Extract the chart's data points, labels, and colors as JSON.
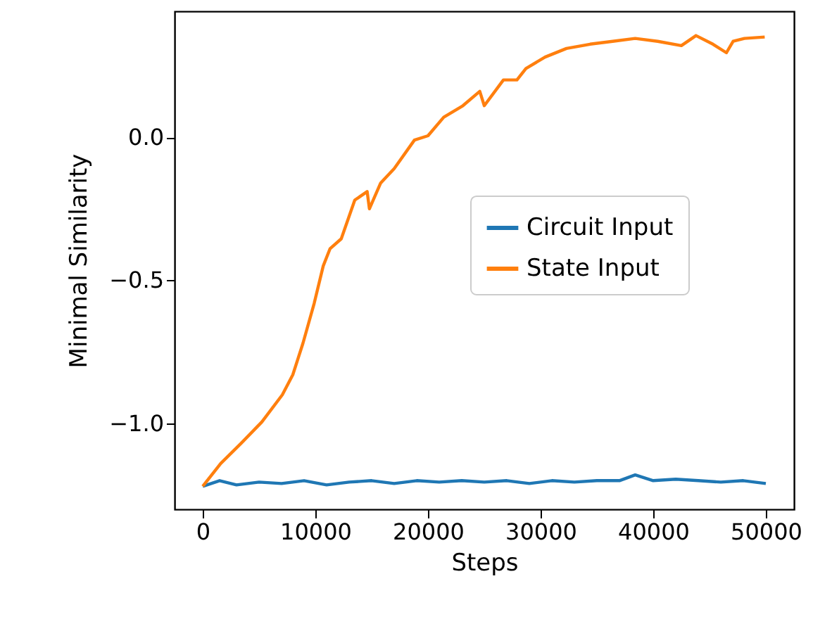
{
  "chart_data": {
    "type": "line",
    "xlabel": "Steps",
    "ylabel": "Minimal Similarity",
    "xlim": [
      -2500,
      52500
    ],
    "xticks": [
      0,
      10000,
      20000,
      30000,
      40000,
      50000
    ],
    "ylim": [
      -1.3,
      0.44
    ],
    "yticks": [
      {
        "value": -1,
        "label": "−1.0"
      },
      {
        "value": -0.5,
        "label": "−0.5"
      },
      {
        "value": 0,
        "label": "0.0"
      }
    ],
    "grid": false,
    "legend": "right",
    "marker": "none",
    "line_style": "solid",
    "series": [
      {
        "name": "Circuit Input",
        "color": "#1f77b4",
        "x": [
          0,
          1500,
          3000,
          5000,
          7000,
          9000,
          11000,
          13000,
          15000,
          17000,
          19000,
          21000,
          23000,
          25000,
          27000,
          29000,
          31000,
          33000,
          35000,
          37000,
          38400,
          40000,
          42000,
          44000,
          46000,
          48000,
          50000
        ],
        "values": [
          -1.22,
          -1.2,
          -1.215,
          -1.205,
          -1.21,
          -1.2,
          -1.215,
          -1.205,
          -1.2,
          -1.21,
          -1.2,
          -1.205,
          -1.2,
          -1.205,
          -1.2,
          -1.21,
          -1.2,
          -1.205,
          -1.2,
          -1.2,
          -1.18,
          -1.2,
          -1.195,
          -1.2,
          -1.205,
          -1.2,
          -1.21
        ]
      },
      {
        "name": "State Input",
        "color": "#ff7f0e",
        "x": [
          0,
          1600,
          3400,
          5250,
          7070,
          8000,
          8900,
          9900,
          10700,
          11300,
          12300,
          13500,
          14600,
          14800,
          15800,
          17000,
          18800,
          20000,
          21400,
          23100,
          24600,
          25000,
          26700,
          27900,
          28700,
          30400,
          32300,
          34400,
          36400,
          38400,
          40400,
          42500,
          43800,
          45300,
          46500,
          47100,
          48100,
          49900
        ],
        "values": [
          -1.22,
          -1.14,
          -1.07,
          -0.995,
          -0.9,
          -0.83,
          -0.72,
          -0.58,
          -0.45,
          -0.39,
          -0.355,
          -0.22,
          -0.19,
          -0.25,
          -0.16,
          -0.11,
          -0.01,
          0.005,
          0.07,
          0.11,
          0.16,
          0.11,
          0.2,
          0.2,
          0.24,
          0.28,
          0.31,
          0.325,
          0.335,
          0.345,
          0.335,
          0.32,
          0.355,
          0.325,
          0.295,
          0.335,
          0.345,
          0.35
        ]
      }
    ]
  }
}
